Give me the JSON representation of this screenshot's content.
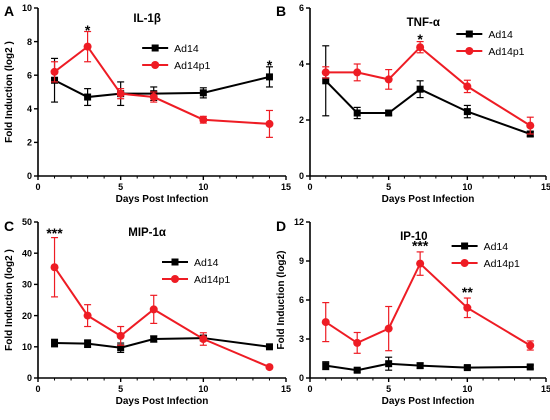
{
  "colors": {
    "ad14": "#000000",
    "ad14p1": "#ee1c24"
  },
  "chart_data": [
    {
      "panel": "A",
      "type": "line",
      "title": "IL-1β",
      "xlabel": "Days Post Infection",
      "ylabel": "Fold Induction (log2 )",
      "xlim": [
        0,
        15
      ],
      "ylim": [
        0,
        10
      ],
      "xticks": [
        0,
        5,
        10,
        15
      ],
      "yticks": [
        0,
        2,
        4,
        6,
        8,
        10
      ],
      "legend_position": "top-right",
      "series": [
        {
          "name": "Ad14",
          "color": "#000000",
          "marker": "square",
          "x": [
            1,
            3,
            5,
            7,
            10,
            14
          ],
          "y": [
            5.7,
            4.7,
            4.9,
            4.9,
            4.95,
            5.9
          ],
          "err": [
            1.3,
            0.5,
            0.7,
            0.4,
            0.3,
            0.6
          ]
        },
        {
          "name": "Ad14p1",
          "color": "#ee1c24",
          "marker": "circle",
          "x": [
            1,
            3,
            5,
            7,
            10,
            14
          ],
          "y": [
            6.2,
            7.7,
            4.9,
            4.7,
            3.35,
            3.1
          ],
          "err": [
            0.6,
            0.9,
            0.3,
            0.3,
            0.2,
            0.8
          ]
        }
      ],
      "annotations": [
        {
          "text": "*",
          "x": 3,
          "y": 8.7
        },
        {
          "text": "*",
          "x": 14,
          "y": 6.6
        }
      ]
    },
    {
      "panel": "B",
      "type": "line",
      "title": "TNF-α",
      "xlabel": "Days Post Infection",
      "ylabel": "",
      "xlim": [
        0,
        15
      ],
      "ylim": [
        0,
        6
      ],
      "xticks": [
        0,
        5,
        10,
        15
      ],
      "yticks": [
        0,
        2,
        4,
        6
      ],
      "legend_position": "top-right",
      "series": [
        {
          "name": "Ad14",
          "color": "#000000",
          "marker": "square",
          "x": [
            1,
            3,
            5,
            7,
            10,
            14
          ],
          "y": [
            3.4,
            2.25,
            2.25,
            3.1,
            2.3,
            1.5
          ],
          "err": [
            1.25,
            0.2,
            0.08,
            0.3,
            0.22,
            0.08
          ]
        },
        {
          "name": "Ad14p1",
          "color": "#ee1c24",
          "marker": "circle",
          "x": [
            1,
            3,
            5,
            7,
            10,
            14
          ],
          "y": [
            3.7,
            3.7,
            3.45,
            4.6,
            3.2,
            1.8
          ],
          "err": [
            0.2,
            0.3,
            0.35,
            0.2,
            0.22,
            0.3
          ]
        }
      ],
      "annotations": [
        {
          "text": "*",
          "x": 7,
          "y": 4.9
        }
      ]
    },
    {
      "panel": "C",
      "type": "line",
      "title": "MIP-1α",
      "xlabel": "Days Post Infection",
      "ylabel": "Fold Induction (log2 )",
      "xlim": [
        0,
        15
      ],
      "ylim": [
        0,
        50
      ],
      "xticks": [
        0,
        5,
        10,
        15
      ],
      "yticks": [
        0,
        10,
        20,
        30,
        40,
        50
      ],
      "legend_position": "top-right",
      "series": [
        {
          "name": "Ad14",
          "color": "#000000",
          "marker": "square",
          "x": [
            1,
            3,
            5,
            7,
            10,
            14
          ],
          "y": [
            11.2,
            11,
            9.7,
            12.5,
            12.8,
            10
          ],
          "err": [
            1.2,
            1.2,
            1.5,
            1.0,
            0.8,
            0.5
          ]
        },
        {
          "name": "Ad14p1",
          "color": "#ee1c24",
          "marker": "circle",
          "x": [
            1,
            3,
            5,
            7,
            10,
            14
          ],
          "y": [
            35.5,
            20,
            13.5,
            22,
            12.5,
            3.5
          ],
          "err": [
            9.5,
            3.5,
            3,
            4.5,
            2,
            0.5
          ]
        }
      ],
      "annotations": [
        {
          "text": "***",
          "x": 1,
          "y": 46.5
        }
      ]
    },
    {
      "panel": "D",
      "type": "line",
      "title": "IP-10",
      "xlabel": "Days Post Infection",
      "ylabel": "Fold Induction (log2)",
      "xlim": [
        0,
        15
      ],
      "ylim": [
        0,
        12
      ],
      "xticks": [
        0,
        5,
        10,
        15
      ],
      "yticks": [
        0,
        3,
        6,
        9,
        12
      ],
      "legend_position": "top-right",
      "series": [
        {
          "name": "Ad14",
          "color": "#000000",
          "marker": "square",
          "x": [
            1,
            3,
            5,
            7,
            10,
            14
          ],
          "y": [
            0.95,
            0.6,
            1.1,
            0.95,
            0.8,
            0.85
          ],
          "err": [
            0.3,
            0.15,
            0.5,
            0.2,
            0.15,
            0.15
          ]
        },
        {
          "name": "Ad14p1",
          "color": "#ee1c24",
          "marker": "circle",
          "x": [
            1,
            3,
            5,
            7,
            10,
            14
          ],
          "y": [
            4.3,
            2.7,
            3.8,
            8.8,
            5.4,
            2.5
          ],
          "err": [
            1.5,
            0.8,
            1.7,
            0.9,
            0.75,
            0.35
          ]
        }
      ],
      "annotations": [
        {
          "text": "***",
          "x": 7,
          "y": 10.2
        },
        {
          "text": "**",
          "x": 10,
          "y": 6.6
        }
      ]
    }
  ]
}
